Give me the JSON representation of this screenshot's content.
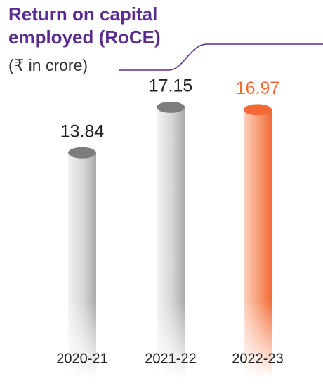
{
  "chart_data": {
    "type": "bar",
    "title": [
      "Return on capital",
      "employed (RoCE)"
    ],
    "subtitle": "(₹ in crore)",
    "categories": [
      "2020-21",
      "2021-22",
      "2022-23"
    ],
    "values": [
      13.84,
      17.15,
      16.97
    ],
    "colors": [
      "#8a8a8a",
      "#8a8a8a",
      "#f26a35"
    ],
    "label_colors": [
      "#222222",
      "#222222",
      "#f26a35"
    ]
  }
}
